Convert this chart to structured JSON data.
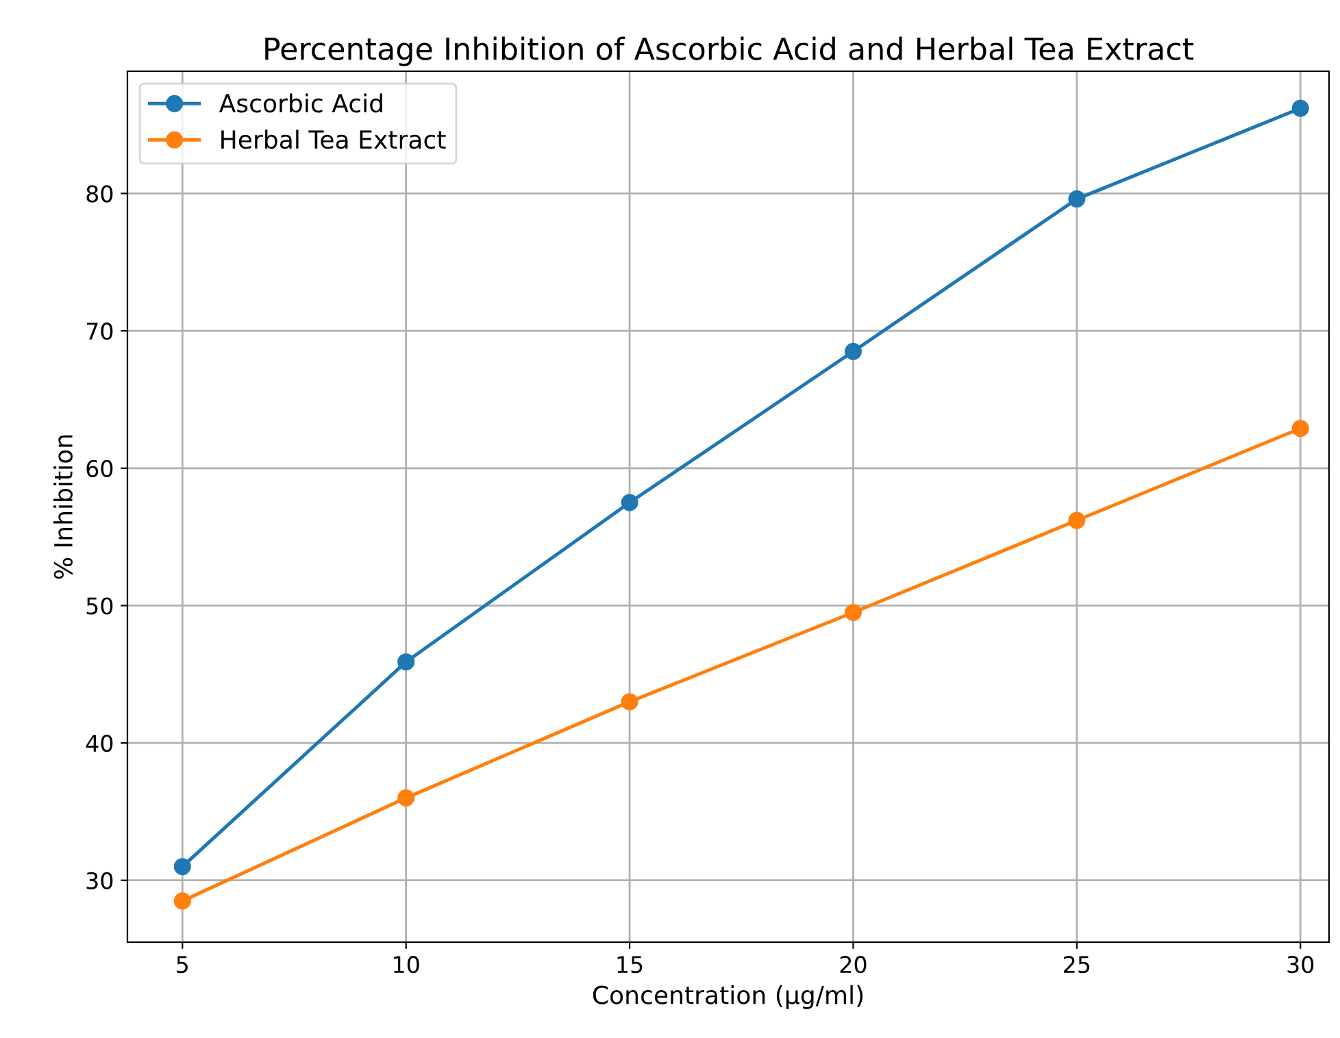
{
  "chart_data": {
    "type": "line",
    "title": "Percentage Inhibition of Ascorbic Acid and Herbal Tea Extract",
    "xlabel": "Concentration (µg/ml)",
    "ylabel": "% Inhibition",
    "x": [
      5,
      10,
      15,
      20,
      25,
      30
    ],
    "series": [
      {
        "name": "Ascorbic Acid",
        "color": "#1f77b4",
        "values": [
          31.0,
          45.9,
          57.5,
          68.5,
          79.6,
          86.2
        ]
      },
      {
        "name": "Herbal Tea Extract",
        "color": "#ff7f0e",
        "values": [
          28.5,
          36.0,
          43.0,
          49.5,
          56.2,
          62.9
        ]
      }
    ],
    "xlim": [
      3.77,
      30.64
    ],
    "ylim": [
      25.5,
      88.9
    ],
    "xticks": [
      5,
      10,
      15,
      20,
      25,
      30
    ],
    "yticks": [
      30,
      40,
      50,
      60,
      70,
      80
    ],
    "grid": true,
    "legend": "top left",
    "marker": "circle",
    "line_style": "solid"
  }
}
